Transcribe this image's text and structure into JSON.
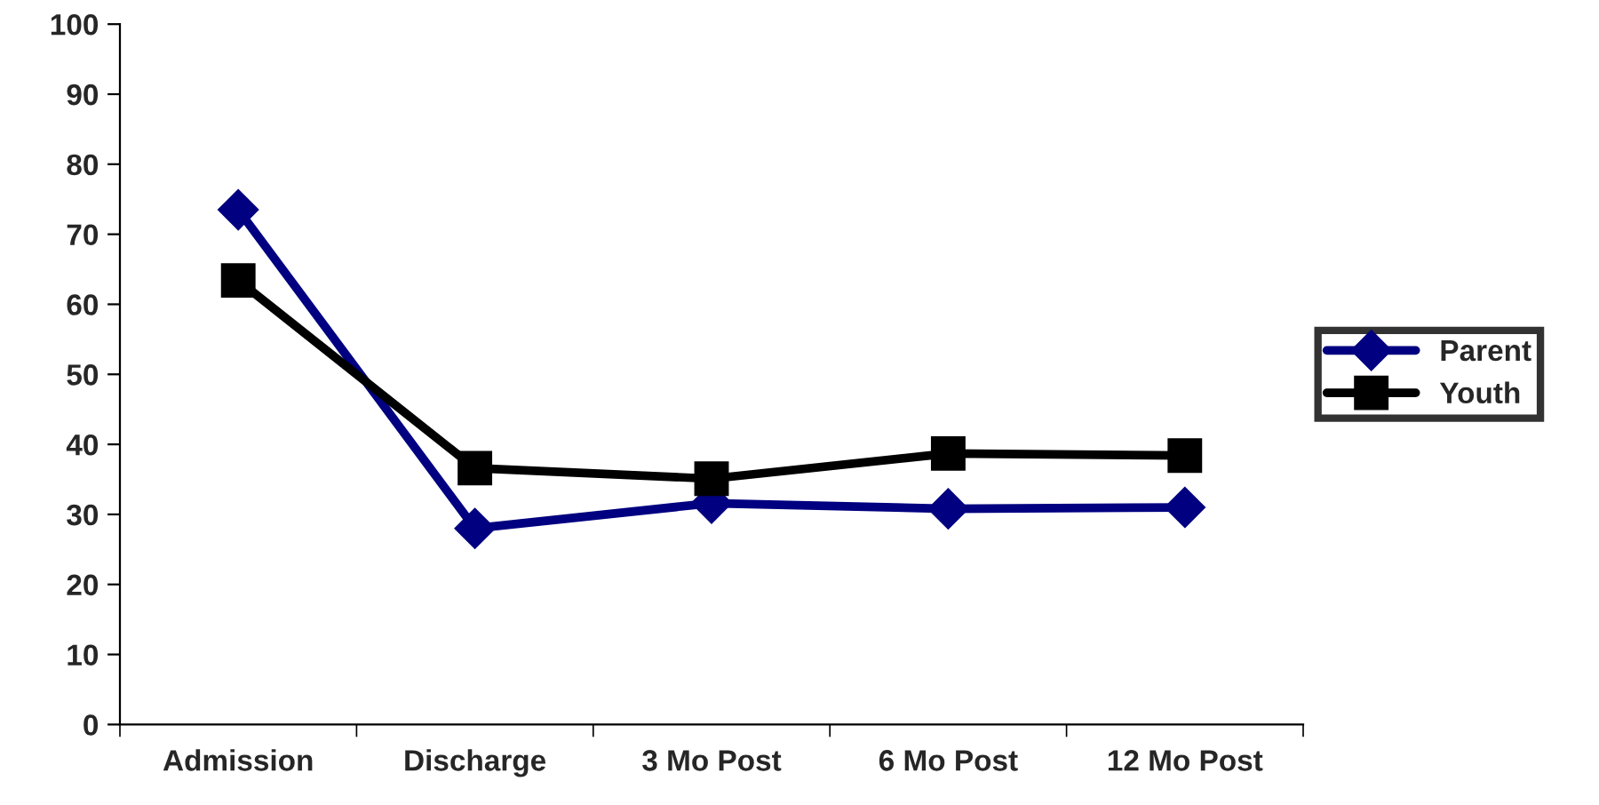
{
  "chart_data": {
    "type": "line",
    "categories": [
      "Admission",
      "Discharge",
      "3 Mo Post",
      "6 Mo Post",
      "12 Mo Post"
    ],
    "series": [
      {
        "name": "Parent",
        "color": "#000080",
        "marker": "diamond",
        "values": [
          73.5,
          28,
          31.6,
          30.8,
          31
        ]
      },
      {
        "name": "Youth",
        "color": "#000000",
        "marker": "square",
        "values": [
          63.4,
          36.6,
          35.1,
          38.7,
          38.4
        ]
      }
    ],
    "ylim": [
      0,
      100
    ],
    "yticks": [
      0,
      10,
      20,
      30,
      40,
      50,
      60,
      70,
      80,
      90,
      100
    ],
    "grid": false,
    "legend": "right",
    "line_style": "solid"
  }
}
